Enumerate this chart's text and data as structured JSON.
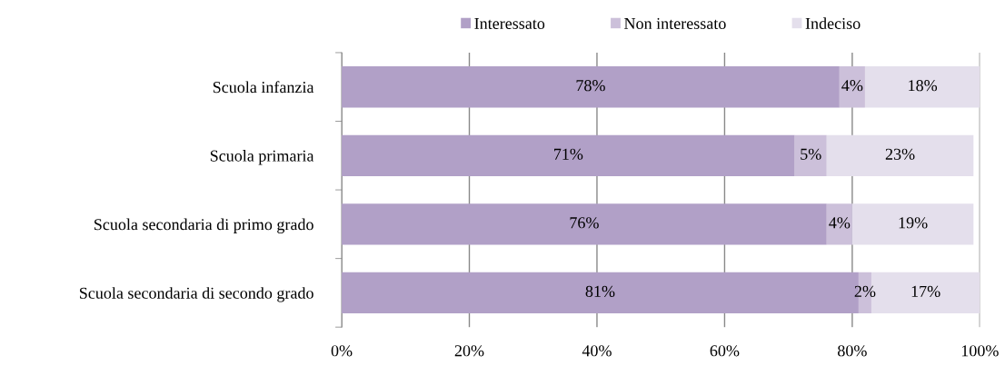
{
  "chart_data": {
    "type": "bar",
    "orientation": "horizontal",
    "stacked": true,
    "categories": [
      "Scuola infanzia",
      "Scuola primaria",
      "Scuola secondaria di primo grado",
      "Scuola secondaria di secondo grado"
    ],
    "series": [
      {
        "name": "Interessato",
        "color": "#b1a0c7",
        "values": [
          78,
          71,
          76,
          81
        ],
        "value_labels": [
          "78%",
          "71%",
          "76%",
          "81%"
        ]
      },
      {
        "name": "Non interessato",
        "color": "#ccc0da",
        "values": [
          4,
          5,
          4,
          2
        ],
        "value_labels": [
          "4%",
          "5%",
          "4%",
          "2%"
        ]
      },
      {
        "name": "Indeciso",
        "color": "#e4dfec",
        "values": [
          18,
          23,
          19,
          17
        ],
        "value_labels": [
          "18%",
          "23%",
          "19%",
          "17%"
        ]
      }
    ],
    "xlim": [
      0,
      100
    ],
    "xticks": [
      {
        "value": 0,
        "label": "0%"
      },
      {
        "value": 20,
        "label": "20%"
      },
      {
        "value": 40,
        "label": "40%"
      },
      {
        "value": 60,
        "label": "60%"
      },
      {
        "value": 80,
        "label": "80%"
      },
      {
        "value": 100,
        "label": "100%"
      }
    ],
    "grid": "x",
    "legend": "top"
  }
}
